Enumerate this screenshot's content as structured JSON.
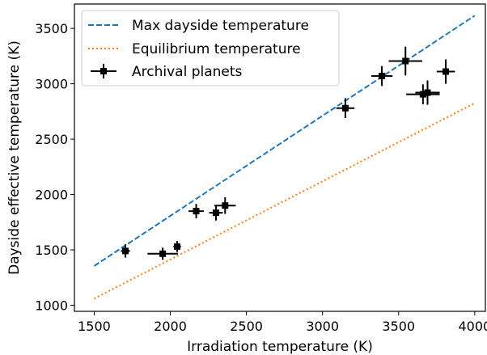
{
  "chart_data": {
    "type": "scatter",
    "title": "",
    "xlabel": "Irradiation temperature (K)",
    "ylabel": "Dayside effective temperature (K)",
    "xlim": [
      1370,
      4070
    ],
    "ylim": [
      945,
      3720
    ],
    "xticks": [
      1500,
      2000,
      2500,
      3000,
      3500,
      4000
    ],
    "yticks": [
      1000,
      1500,
      2000,
      2500,
      3000,
      3500
    ],
    "grid": false,
    "legend_position": "top-left",
    "series": [
      {
        "name": "Max dayside temperature",
        "kind": "line",
        "style": "dashed",
        "color": "#1f77b4",
        "x": [
          1500,
          4000
        ],
        "y": [
          1355,
          3615
        ]
      },
      {
        "name": "Equilibrium temperature",
        "kind": "line",
        "style": "dotted",
        "color": "#ff7f0e",
        "x": [
          1500,
          4000
        ],
        "y": [
          1060,
          2825
        ]
      },
      {
        "name": "Archival planets",
        "kind": "errorbar",
        "color": "#000000",
        "points": [
          {
            "x": 1705,
            "y": 1490,
            "xerr": 30,
            "yerr": 60
          },
          {
            "x": 1950,
            "y": 1465,
            "xerr": 100,
            "yerr": 55
          },
          {
            "x": 2045,
            "y": 1530,
            "xerr": 25,
            "yerr": 50
          },
          {
            "x": 2170,
            "y": 1850,
            "xerr": 50,
            "yerr": 65
          },
          {
            "x": 2300,
            "y": 1835,
            "xerr": 45,
            "yerr": 70
          },
          {
            "x": 2360,
            "y": 1900,
            "xerr": 70,
            "yerr": 75
          },
          {
            "x": 3150,
            "y": 2780,
            "xerr": 60,
            "yerr": 90
          },
          {
            "x": 3390,
            "y": 3070,
            "xerr": 70,
            "yerr": 90
          },
          {
            "x": 3545,
            "y": 3205,
            "xerr": 110,
            "yerr": 130
          },
          {
            "x": 3660,
            "y": 2905,
            "xerr": 110,
            "yerr": 90
          },
          {
            "x": 3690,
            "y": 2920,
            "xerr": 80,
            "yerr": 110
          },
          {
            "x": 3810,
            "y": 3110,
            "xerr": 60,
            "yerr": 110
          }
        ]
      }
    ]
  }
}
